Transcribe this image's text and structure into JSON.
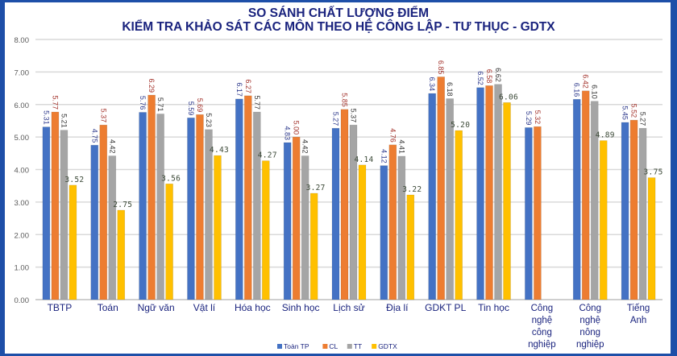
{
  "chart_data": {
    "type": "bar",
    "title": [
      "SO SÁNH CHẤT LƯỢNG ĐIỂM",
      "KIỂM TRA KHẢO SÁT CÁC MÔN THEO HỆ CÔNG LẬP - TƯ THỤC - GDTX"
    ],
    "categories": [
      "TBTP",
      "Toán",
      "Ngữ văn",
      "Vật lí",
      "Hóa học",
      "Sinh học",
      "Lịch sử",
      "Địa lí",
      "GDKT PL",
      "Tin học",
      "Công nghệ công nghiệp",
      "Công nghệ nông nghiệp",
      "Tiếng Anh"
    ],
    "category_lines": [
      [
        "TBTP"
      ],
      [
        "Toán"
      ],
      [
        "Ngữ văn"
      ],
      [
        "Vật lí"
      ],
      [
        "Hóa học"
      ],
      [
        "Sinh học"
      ],
      [
        "Lịch sử"
      ],
      [
        "Địa lí"
      ],
      [
        "GDKT PL"
      ],
      [
        "Tin học"
      ],
      [
        "Công",
        "nghệ",
        "công",
        "nghiệp"
      ],
      [
        "Công",
        "nghệ",
        "nông",
        "nghiệp"
      ],
      [
        "Tiếng",
        "Anh"
      ]
    ],
    "series": [
      {
        "name": "Toàn TP",
        "color": "#4472c4",
        "label_color": "#2e3a8c",
        "values": [
          5.31,
          4.75,
          5.76,
          5.59,
          6.17,
          4.83,
          5.27,
          4.12,
          6.34,
          6.52,
          5.29,
          6.16,
          5.45
        ]
      },
      {
        "name": "CL",
        "color": "#ed7d31",
        "label_color": "#a3322b",
        "values": [
          5.77,
          5.37,
          6.29,
          5.69,
          6.27,
          5.0,
          5.85,
          4.76,
          6.85,
          6.58,
          5.32,
          6.42,
          5.52
        ]
      },
      {
        "name": "TT",
        "color": "#a5a5a5",
        "label_color": "#333333",
        "values": [
          5.21,
          4.42,
          5.71,
          5.23,
          5.77,
          4.42,
          5.37,
          4.41,
          6.18,
          6.62,
          null,
          6.1,
          5.27
        ]
      },
      {
        "name": "GDTX",
        "color": "#ffc000",
        "label_color": "#3c4a38",
        "values": [
          3.52,
          2.75,
          3.56,
          4.43,
          4.27,
          3.27,
          4.14,
          3.22,
          5.2,
          6.06,
          null,
          4.89,
          3.75
        ]
      }
    ],
    "yticks": [
      "0.00",
      "1.00",
      "2.00",
      "3.00",
      "4.00",
      "5.00",
      "6.00",
      "7.00",
      "8.00"
    ],
    "ylim": [
      0,
      8
    ],
    "grid": true,
    "legend_position": "bottom"
  }
}
